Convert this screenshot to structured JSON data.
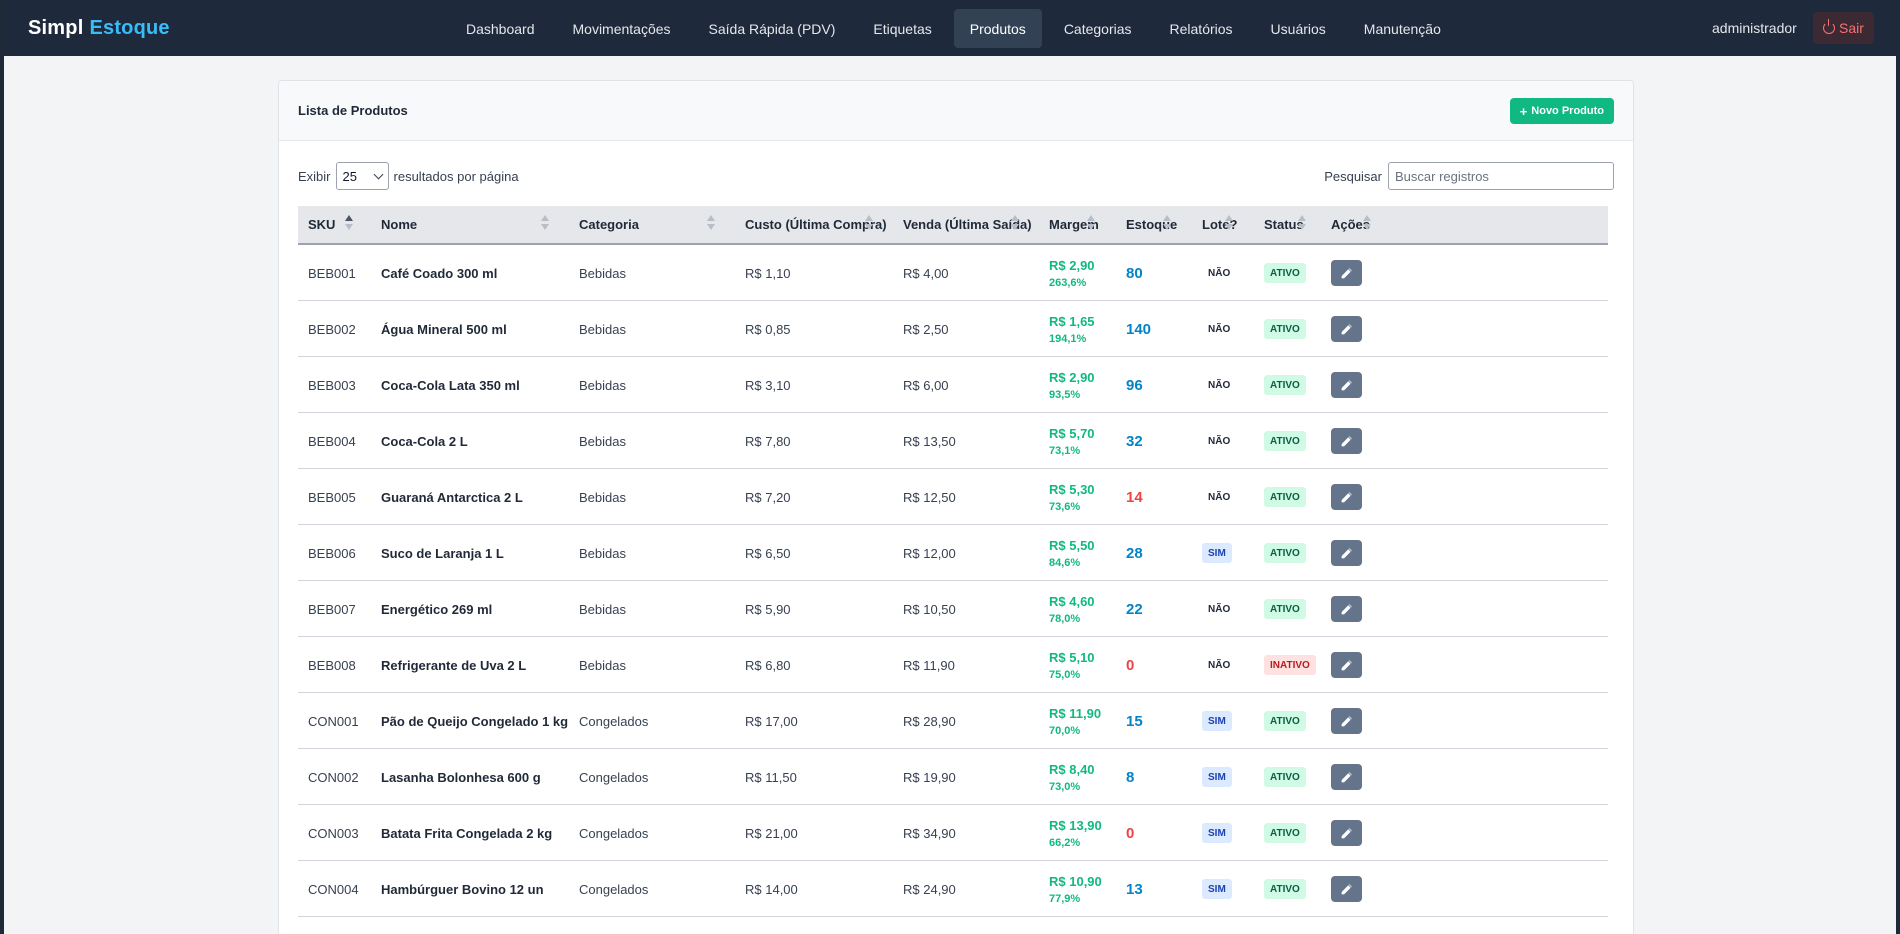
{
  "brand": {
    "primary": "Simpl",
    "accent": "Estoque"
  },
  "nav": {
    "links": [
      {
        "label": "Dashboard"
      },
      {
        "label": "Movimentações"
      },
      {
        "label": "Saída Rápida (PDV)"
      },
      {
        "label": "Etiquetas"
      },
      {
        "label": "Produtos",
        "active": true
      },
      {
        "label": "Categorias"
      },
      {
        "label": "Relatórios"
      },
      {
        "label": "Usuários"
      },
      {
        "label": "Manutenção"
      }
    ],
    "user": "administrador",
    "logout_label": "Sair",
    "logout_icon": "power-icon"
  },
  "card": {
    "title": "Lista de Produtos",
    "new_button_label": "Novo Produto",
    "new_button_icon": "plus-icon"
  },
  "controls": {
    "show_label": "Exibir",
    "page_size": "25",
    "per_page_label": "resultados por página",
    "search_label": "Pesquisar",
    "search_placeholder": "Buscar registros"
  },
  "table": {
    "columns": [
      "SKU",
      "Nome",
      "Categoria",
      "Custo (Última Compra)",
      "Venda (Última Saída)",
      "Margem",
      "Estoque",
      "Lote?",
      "Status",
      "Ações"
    ],
    "sorted_column": "SKU",
    "sort_direction": "ascending",
    "rows": [
      {
        "sku": "BEB001",
        "nome": "Café Coado 300 ml",
        "categoria": "Bebidas",
        "custo": "R$ 1,10",
        "venda": "R$ 4,00",
        "margem": "R$ 2,90",
        "margem_pct": "263,6%",
        "estoque": "80",
        "estoque_low": false,
        "lote": "NÃO",
        "status": "ATIVO"
      },
      {
        "sku": "BEB002",
        "nome": "Água Mineral 500 ml",
        "categoria": "Bebidas",
        "custo": "R$ 0,85",
        "venda": "R$ 2,50",
        "margem": "R$ 1,65",
        "margem_pct": "194,1%",
        "estoque": "140",
        "estoque_low": false,
        "lote": "NÃO",
        "status": "ATIVO"
      },
      {
        "sku": "BEB003",
        "nome": "Coca-Cola Lata 350 ml",
        "categoria": "Bebidas",
        "custo": "R$ 3,10",
        "venda": "R$ 6,00",
        "margem": "R$ 2,90",
        "margem_pct": "93,5%",
        "estoque": "96",
        "estoque_low": false,
        "lote": "NÃO",
        "status": "ATIVO"
      },
      {
        "sku": "BEB004",
        "nome": "Coca-Cola 2 L",
        "categoria": "Bebidas",
        "custo": "R$ 7,80",
        "venda": "R$ 13,50",
        "margem": "R$ 5,70",
        "margem_pct": "73,1%",
        "estoque": "32",
        "estoque_low": false,
        "lote": "NÃO",
        "status": "ATIVO"
      },
      {
        "sku": "BEB005",
        "nome": "Guaraná Antarctica 2 L",
        "categoria": "Bebidas",
        "custo": "R$ 7,20",
        "venda": "R$ 12,50",
        "margem": "R$ 5,30",
        "margem_pct": "73,6%",
        "estoque": "14",
        "estoque_low": true,
        "lote": "NÃO",
        "status": "ATIVO"
      },
      {
        "sku": "BEB006",
        "nome": "Suco de Laranja 1 L",
        "categoria": "Bebidas",
        "custo": "R$ 6,50",
        "venda": "R$ 12,00",
        "margem": "R$ 5,50",
        "margem_pct": "84,6%",
        "estoque": "28",
        "estoque_low": false,
        "lote": "SIM",
        "status": "ATIVO"
      },
      {
        "sku": "BEB007",
        "nome": "Energético 269 ml",
        "categoria": "Bebidas",
        "custo": "R$ 5,90",
        "venda": "R$ 10,50",
        "margem": "R$ 4,60",
        "margem_pct": "78,0%",
        "estoque": "22",
        "estoque_low": false,
        "lote": "NÃO",
        "status": "ATIVO"
      },
      {
        "sku": "BEB008",
        "nome": "Refrigerante de Uva 2 L",
        "categoria": "Bebidas",
        "custo": "R$ 6,80",
        "venda": "R$ 11,90",
        "margem": "R$ 5,10",
        "margem_pct": "75,0%",
        "estoque": "0",
        "estoque_low": true,
        "lote": "NÃO",
        "status": "INATIVO"
      },
      {
        "sku": "CON001",
        "nome": "Pão de Queijo Congelado 1 kg",
        "categoria": "Congelados",
        "custo": "R$ 17,00",
        "venda": "R$ 28,90",
        "margem": "R$ 11,90",
        "margem_pct": "70,0%",
        "estoque": "15",
        "estoque_low": false,
        "lote": "SIM",
        "status": "ATIVO"
      },
      {
        "sku": "CON002",
        "nome": "Lasanha Bolonhesa 600 g",
        "categoria": "Congelados",
        "custo": "R$ 11,50",
        "venda": "R$ 19,90",
        "margem": "R$ 8,40",
        "margem_pct": "73,0%",
        "estoque": "8",
        "estoque_low": false,
        "lote": "SIM",
        "status": "ATIVO"
      },
      {
        "sku": "CON003",
        "nome": "Batata Frita Congelada 2 kg",
        "categoria": "Congelados",
        "custo": "R$ 21,00",
        "venda": "R$ 34,90",
        "margem": "R$ 13,90",
        "margem_pct": "66,2%",
        "estoque": "0",
        "estoque_low": true,
        "lote": "SIM",
        "status": "ATIVO"
      },
      {
        "sku": "CON004",
        "nome": "Hambúrguer Bovino 12 un",
        "categoria": "Congelados",
        "custo": "R$ 14,00",
        "venda": "R$ 24,90",
        "margem": "R$ 10,90",
        "margem_pct": "77,9%",
        "estoque": "13",
        "estoque_low": false,
        "lote": "SIM",
        "status": "ATIVO"
      }
    ],
    "edit_icon": "pencil-icon"
  },
  "colors": {
    "navbar": "#1e293b",
    "brand_accent": "#38bdf8",
    "success": "#10b981",
    "stock_ok": "#0284c7",
    "stock_low": "#ef4444",
    "danger": "#f87171"
  }
}
